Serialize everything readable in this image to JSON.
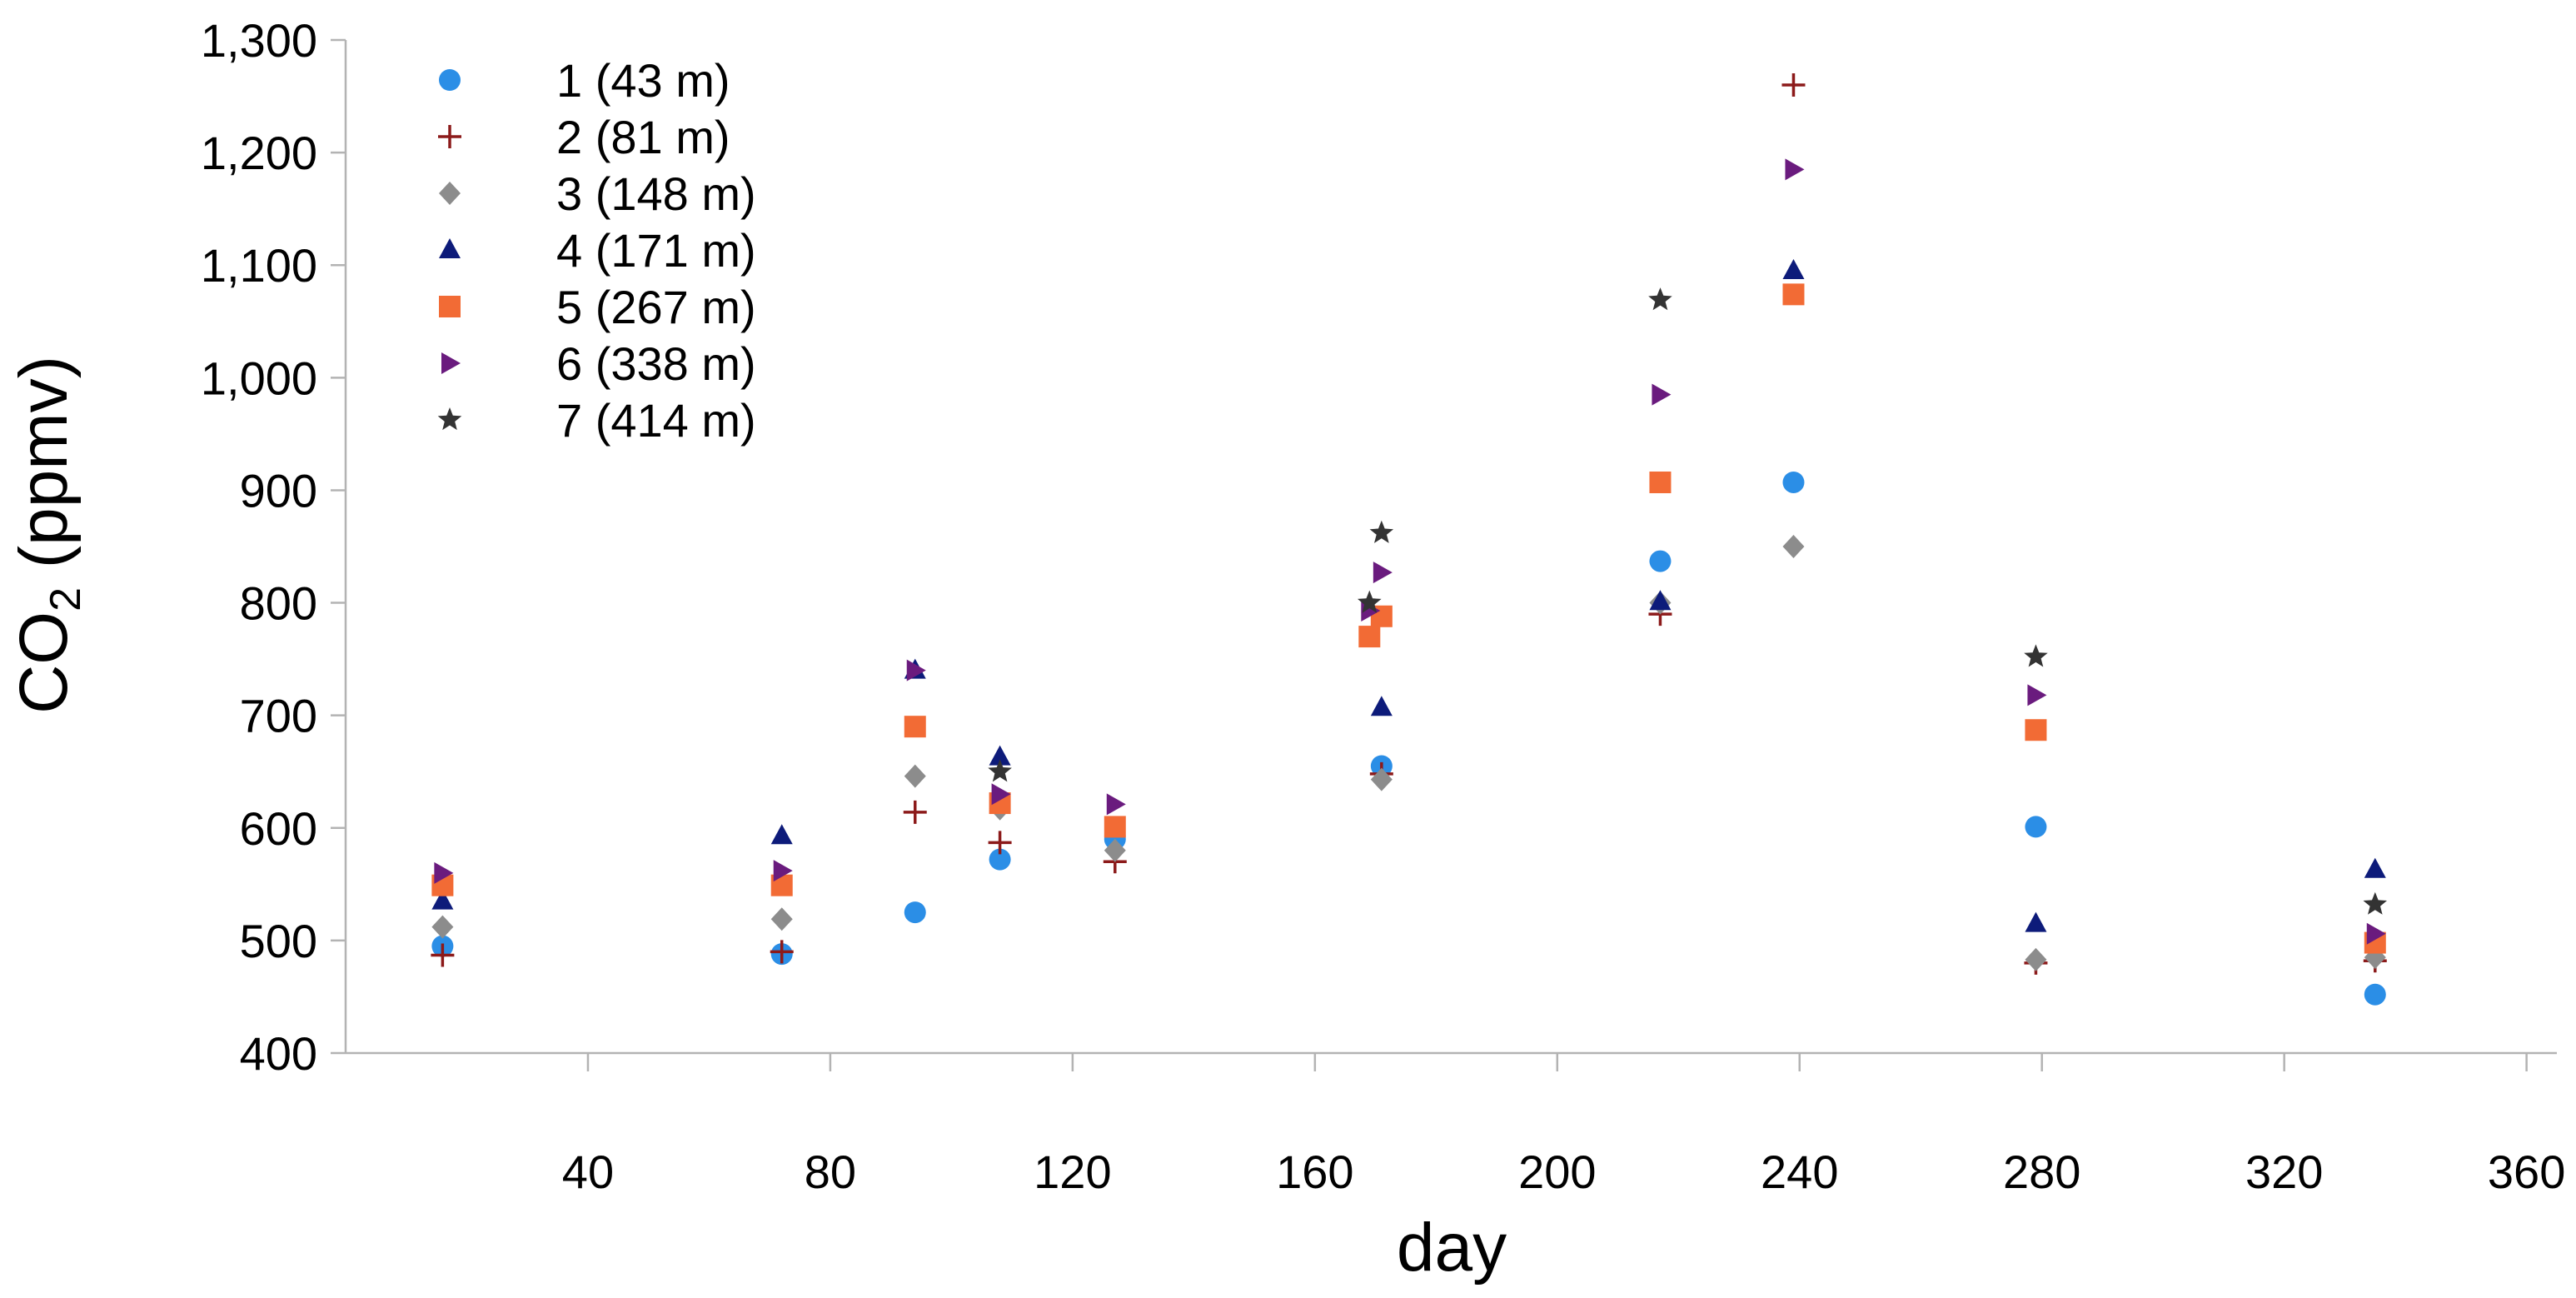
{
  "chart_data": {
    "type": "scatter",
    "title": "",
    "xlabel": "day",
    "ylabel": "CO",
    "ylabel_subscript": "2",
    "ylabel_suffix": " (ppmv)",
    "xlim": [
      0,
      365
    ],
    "ylim": [
      400,
      1300
    ],
    "xticks": [
      40,
      80,
      120,
      160,
      200,
      240,
      280,
      320,
      360
    ],
    "yticks": [
      400,
      500,
      600,
      700,
      800,
      900,
      1000,
      1100,
      1200,
      1300
    ],
    "ytick_labels": [
      "400",
      "500",
      "600",
      "700",
      "800",
      "900",
      "1,000",
      "1,100",
      "1,200",
      "1,300"
    ],
    "legend_position": "top-left",
    "series": [
      {
        "name": "1 (43 m)",
        "marker": "circle",
        "color": "#2b8ee6",
        "x": [
          16,
          72,
          94,
          108,
          127,
          171,
          217,
          239,
          279,
          335
        ],
        "y": [
          495,
          488,
          525,
          572,
          590,
          655,
          837,
          907,
          601,
          452
        ]
      },
      {
        "name": "2 (81 m)",
        "marker": "plus",
        "color": "#8c1a1a",
        "x": [
          16,
          72,
          94,
          108,
          127,
          171,
          217,
          239,
          279,
          335
        ],
        "y": [
          487,
          490,
          614,
          587,
          570,
          648,
          790,
          1260,
          480,
          482
        ]
      },
      {
        "name": "3 (148 m)",
        "marker": "diamond",
        "color": "#8c8c8c",
        "x": [
          16,
          72,
          94,
          108,
          127,
          171,
          217,
          239,
          279,
          335
        ],
        "y": [
          512,
          519,
          646,
          617,
          580,
          643,
          800,
          850,
          483,
          485
        ]
      },
      {
        "name": "4 (171 m)",
        "marker": "triangle-up",
        "color": "#0d1b7a",
        "x": [
          16,
          72,
          94,
          108,
          127,
          171,
          217,
          239,
          279,
          335
        ],
        "y": [
          535,
          593,
          740,
          663,
          600,
          707,
          801,
          1095,
          515,
          563
        ]
      },
      {
        "name": "5 (267 m)",
        "marker": "square",
        "color": "#f26b35",
        "x": [
          16,
          72,
          94,
          108,
          127,
          169,
          171,
          217,
          239,
          279,
          335
        ],
        "y": [
          549,
          549,
          690,
          622,
          601,
          770,
          788,
          907,
          1074,
          687,
          498
        ]
      },
      {
        "name": "6 (338 m)",
        "marker": "triangle-right",
        "color": "#6a1b7e",
        "x": [
          16,
          72,
          94,
          108,
          127,
          169,
          171,
          217,
          239,
          279,
          335
        ],
        "y": [
          560,
          562,
          740,
          630,
          621,
          793,
          827,
          985,
          1185,
          718,
          506
        ]
      },
      {
        "name": "7 (414 m)",
        "marker": "star",
        "color": "#333333",
        "x": [
          108,
          169,
          171,
          217,
          279,
          335
        ],
        "y": [
          650,
          800,
          862,
          1069,
          752,
          532
        ]
      }
    ]
  }
}
